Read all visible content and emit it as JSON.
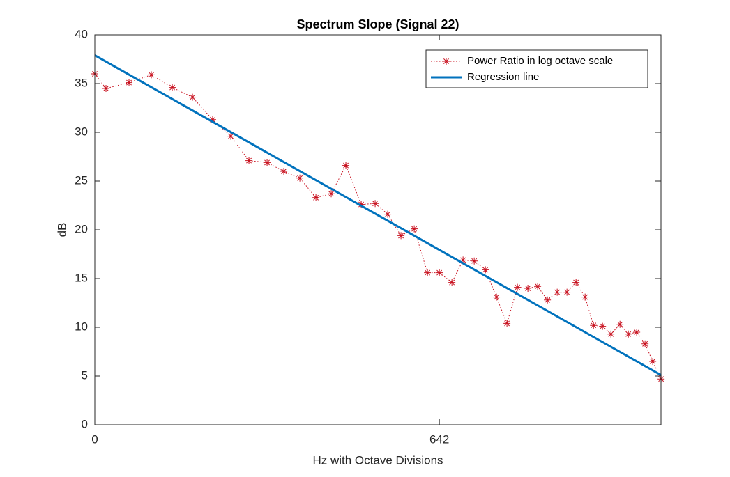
{
  "chart_data": {
    "type": "line",
    "title": "Spectrum Slope (Signal 22)",
    "x_label": "Hz with Octave Divisions",
    "y_label": "dB",
    "xlim": [
      0,
      1055
    ],
    "xticks": [
      0,
      642
    ],
    "ylim": [
      0,
      40
    ],
    "yticks": [
      0,
      5,
      10,
      15,
      20,
      25,
      30,
      35,
      40
    ],
    "grid": false,
    "legend": "upper right",
    "series": [
      {
        "name": "Power Ratio in log octave scale",
        "color": "#c8101e",
        "style": "dotted",
        "marker": "star",
        "x": [
          0,
          20.8,
          63.7,
          105.3,
          144.3,
          182.0,
          219.6,
          253.4,
          287.2,
          321.0,
          352.2,
          382.1,
          412.0,
          440.5,
          467.8,
          496.4,
          522.4,
          545.8,
          570.5,
          595.2,
          619.9,
          642,
          665.4,
          686.2,
          707.0,
          727.8,
          748.5,
          768.0,
          787.5,
          807.0,
          825.2,
          843.4,
          861.6,
          879.8,
          896.7,
          913.6,
          929.2,
          946.1,
          961.7,
          978.6,
          994.2,
          1009.7,
          1025.3,
          1039.6,
          1055.2
        ],
        "values": [
          36.0,
          34.5,
          35.1,
          35.9,
          34.6,
          33.6,
          31.3,
          29.6,
          27.1,
          26.9,
          26.0,
          25.3,
          23.3,
          23.7,
          26.6,
          22.6,
          22.7,
          21.6,
          19.4,
          20.1,
          15.6,
          15.6,
          14.6,
          16.9,
          16.8,
          15.9,
          13.1,
          10.4,
          14.1,
          14.0,
          14.2,
          12.8,
          13.6,
          13.6,
          14.6,
          13.1,
          10.2,
          10.1,
          9.3,
          10.3,
          9.3,
          9.5,
          8.3,
          6.5,
          4.7
        ]
      },
      {
        "name": "Regression line",
        "color": "#0072bd",
        "style": "solid",
        "marker": "none",
        "x": [
          0,
          1055
        ],
        "values": [
          37.9,
          5.1
        ]
      }
    ]
  }
}
